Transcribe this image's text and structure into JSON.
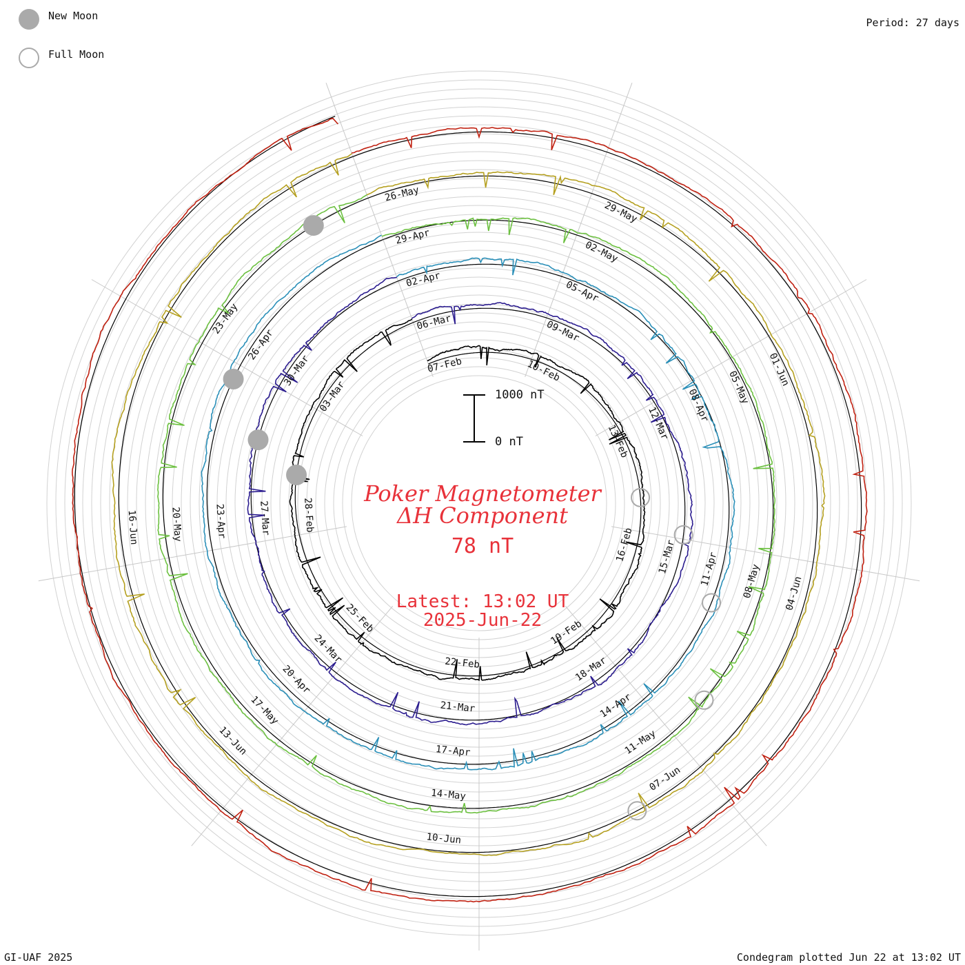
{
  "legend": {
    "new_moon_label": "New Moon",
    "full_moon_label": "Full Moon",
    "new_moon_color": "#aaaaaa",
    "full_moon_color": "#aaaaaa"
  },
  "period_label": "Period: 27 days",
  "footer_left": "GI-UAF 2025",
  "footer_right": "Condegram plotted Jun 22 at 13:02 UT",
  "title": {
    "line1": "Poker Magnetometer",
    "line2": "ΔH Component",
    "value": "78 nT",
    "latest": "Latest: 13:02 UT",
    "date": "2025-Jun-22",
    "color": "#e8323a"
  },
  "scale": {
    "top_label": "1000 nT",
    "bottom_label": "0 nT"
  },
  "chart_data": {
    "type": "line",
    "subtype": "condegram-spiral",
    "period_days": 27,
    "grid": true,
    "series": [
      {
        "color": "#000000",
        "date_labels": [
          "07-Feb",
          "10-Feb",
          "13-Feb",
          "16-Feb",
          "19-Feb",
          "22-Feb",
          "25-Feb",
          "28-Feb",
          "03-Mar"
        ]
      },
      {
        "color": "#2b1c8f",
        "date_labels": [
          "06-Mar",
          "09-Mar",
          "12-Mar",
          "15-Mar",
          "18-Mar",
          "21-Mar",
          "24-Mar",
          "27-Mar",
          "30-Mar"
        ]
      },
      {
        "color": "#2a8fb8",
        "date_labels": [
          "02-Apr",
          "05-Apr",
          "08-Apr",
          "11-Apr",
          "14-Apr",
          "17-Apr",
          "20-Apr",
          "23-Apr",
          "26-Apr"
        ]
      },
      {
        "color": "#6cc040",
        "date_labels": [
          "29-Apr",
          "02-May",
          "05-May",
          "08-May",
          "11-May",
          "14-May",
          "17-May",
          "20-May",
          "23-May"
        ]
      },
      {
        "color": "#b5a020",
        "date_labels": [
          "26-May",
          "29-May",
          "01-Jun",
          "04-Jun",
          "07-Jun",
          "10-Jun",
          "13-Jun",
          "16-Jun"
        ]
      },
      {
        "color": "#c02010",
        "date_labels": []
      }
    ],
    "moon_phases": {
      "new_moon": [
        "Feb-28",
        "Mar-29",
        "Apr-27",
        "May-27"
      ],
      "full_moon": [
        "Feb-12",
        "Mar-14",
        "Apr-13",
        "May-12",
        "Jun-11"
      ]
    }
  }
}
